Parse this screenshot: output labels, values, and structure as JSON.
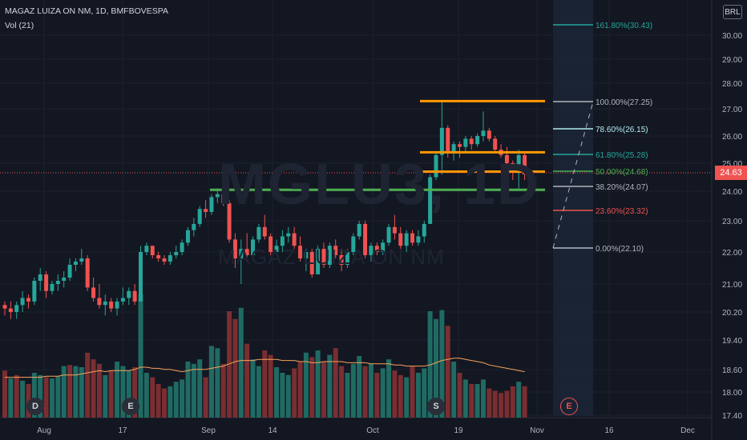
{
  "header": {
    "title": "MAGAZ LUIZA ON NM, 1D, BMFBOVESPA",
    "volume_label": "Vol (21)"
  },
  "watermark": {
    "symbol": "MGLU3, 1D",
    "name": "MAGAZ LUIZA ON NM"
  },
  "currency": "BRL",
  "last_price": "24.63",
  "y_axis_ticks": [
    "30.00",
    "29.00",
    "28.00",
    "27.00",
    "26.00",
    "25.00",
    "24.00",
    "23.00",
    "22.00",
    "21.00",
    "20.20",
    "19.40",
    "18.60",
    "18.00",
    "17.40"
  ],
  "x_axis_ticks": [
    "Aug",
    "17",
    "Sep",
    "14",
    "Oct",
    "19",
    "Nov",
    "16",
    "Dec"
  ],
  "fib_levels": [
    {
      "label": "161.80%(30.43)",
      "color": "#26a69a"
    },
    {
      "label": "100.00%(27.25)",
      "color": "#b2b5be"
    },
    {
      "label": "78.60%(26.15)",
      "color": "#b2ebf2"
    },
    {
      "label": "61.80%(25.28)",
      "color": "#26a69a"
    },
    {
      "label": "50.00%(24.68)",
      "color": "#4caf50"
    },
    {
      "label": "38.20%(24.07)",
      "color": "#b2b5be"
    },
    {
      "label": "23.60%(23.32)",
      "color": "#ef5350"
    },
    {
      "label": "0.00%(22.10)",
      "color": "#b2b5be"
    }
  ],
  "events": [
    {
      "letter": "D",
      "color": "#26a69a"
    },
    {
      "letter": "E",
      "color": "#ef5350"
    },
    {
      "letter": "S",
      "color": "#26a69a"
    },
    {
      "letter": "E",
      "color": "#ef5350"
    }
  ],
  "colors": {
    "up": "#26a69a",
    "down": "#ef5350",
    "background": "#131722",
    "resistance": "#ff9800",
    "support": "#4caf50"
  },
  "chart_data": {
    "type": "candlestick",
    "ohlc": [
      [
        20.4,
        20.5,
        20.1,
        20.3
      ],
      [
        20.3,
        20.5,
        20.0,
        20.2
      ],
      [
        20.2,
        20.5,
        20.0,
        20.4
      ],
      [
        20.4,
        20.8,
        20.2,
        20.6
      ],
      [
        20.6,
        20.7,
        20.3,
        20.5
      ],
      [
        20.5,
        21.2,
        20.4,
        21.1
      ],
      [
        21.1,
        21.5,
        20.8,
        21.3
      ],
      [
        21.3,
        21.4,
        20.6,
        20.8
      ],
      [
        20.8,
        21.1,
        20.7,
        21.0
      ],
      [
        21.0,
        21.3,
        20.8,
        21.1
      ],
      [
        21.1,
        21.4,
        20.9,
        21.2
      ],
      [
        21.2,
        21.8,
        21.1,
        21.6
      ],
      [
        21.6,
        21.8,
        21.4,
        21.7
      ],
      [
        21.7,
        22.1,
        21.6,
        21.8
      ],
      [
        21.8,
        21.9,
        20.8,
        20.9
      ],
      [
        20.9,
        21.2,
        20.5,
        20.6
      ],
      [
        20.6,
        21.0,
        20.3,
        20.4
      ],
      [
        20.4,
        20.7,
        20.1,
        20.5
      ],
      [
        20.5,
        20.6,
        20.2,
        20.3
      ],
      [
        20.3,
        20.6,
        20.1,
        20.5
      ],
      [
        20.5,
        20.9,
        20.4,
        20.6
      ],
      [
        20.6,
        20.9,
        20.4,
        20.8
      ],
      [
        20.8,
        21.0,
        20.4,
        20.5
      ],
      [
        20.5,
        22.2,
        20.5,
        22.0
      ],
      [
        22.0,
        22.3,
        21.9,
        22.2
      ],
      [
        22.2,
        22.2,
        21.8,
        21.9
      ],
      [
        21.9,
        22.0,
        21.7,
        21.8
      ],
      [
        21.8,
        21.9,
        21.6,
        21.7
      ],
      [
        21.7,
        22.0,
        21.6,
        21.9
      ],
      [
        21.9,
        22.2,
        21.8,
        22.0
      ],
      [
        22.0,
        22.4,
        21.9,
        22.3
      ],
      [
        22.3,
        22.8,
        22.2,
        22.7
      ],
      [
        22.7,
        23.1,
        22.5,
        22.9
      ],
      [
        22.9,
        23.5,
        22.8,
        23.4
      ],
      [
        23.4,
        23.7,
        23.1,
        23.3
      ],
      [
        23.3,
        23.9,
        23.2,
        23.8
      ],
      [
        23.8,
        24.1,
        23.6,
        23.9
      ],
      [
        23.9,
        24.0,
        23.5,
        23.6
      ],
      [
        23.6,
        23.7,
        22.3,
        22.4
      ],
      [
        22.4,
        22.6,
        21.5,
        21.8
      ],
      [
        21.8,
        22.4,
        21.0,
        22.1
      ],
      [
        22.1,
        22.6,
        21.7,
        21.9
      ],
      [
        21.9,
        22.5,
        21.8,
        22.4
      ],
      [
        22.4,
        22.9,
        22.3,
        22.8
      ],
      [
        22.8,
        23.2,
        22.4,
        22.5
      ],
      [
        22.5,
        22.6,
        21.9,
        22.0
      ],
      [
        22.0,
        22.4,
        21.9,
        22.2
      ],
      [
        22.2,
        22.7,
        22.0,
        22.5
      ],
      [
        22.5,
        22.8,
        22.3,
        22.6
      ],
      [
        22.6,
        22.8,
        22.1,
        22.2
      ],
      [
        22.2,
        22.5,
        21.7,
        21.8
      ],
      [
        21.8,
        22.1,
        21.4,
        22.0
      ],
      [
        22.0,
        22.1,
        21.2,
        21.3
      ],
      [
        21.3,
        22.2,
        21.3,
        22.1
      ],
      [
        22.1,
        22.3,
        21.5,
        21.6
      ],
      [
        21.6,
        22.3,
        21.5,
        22.2
      ],
      [
        22.2,
        22.4,
        21.8,
        21.9
      ],
      [
        21.9,
        22.1,
        21.4,
        21.6
      ],
      [
        21.6,
        22.1,
        21.5,
        22.0
      ],
      [
        22.0,
        22.6,
        21.9,
        22.5
      ],
      [
        22.5,
        23.0,
        22.4,
        22.9
      ],
      [
        22.9,
        23.0,
        21.8,
        21.9
      ],
      [
        21.9,
        22.3,
        21.7,
        22.2
      ],
      [
        22.2,
        22.3,
        21.9,
        22.0
      ],
      [
        22.0,
        22.4,
        21.9,
        22.3
      ],
      [
        22.3,
        22.9,
        22.2,
        22.8
      ],
      [
        22.8,
        23.2,
        22.4,
        22.6
      ],
      [
        22.6,
        22.8,
        22.1,
        22.2
      ],
      [
        22.2,
        22.7,
        22.0,
        22.6
      ],
      [
        22.6,
        22.7,
        22.2,
        22.3
      ],
      [
        22.3,
        22.7,
        22.2,
        22.5
      ],
      [
        22.5,
        23.0,
        22.3,
        22.9
      ],
      [
        22.9,
        24.6,
        22.9,
        24.5
      ],
      [
        24.5,
        25.4,
        24.4,
        25.3
      ],
      [
        25.3,
        27.3,
        24.6,
        26.3
      ],
      [
        26.3,
        26.4,
        25.2,
        25.4
      ],
      [
        25.4,
        25.8,
        25.1,
        25.7
      ],
      [
        25.7,
        25.8,
        25.2,
        25.6
      ],
      [
        25.6,
        26.0,
        25.4,
        25.9
      ],
      [
        25.9,
        26.0,
        25.5,
        25.7
      ],
      [
        25.7,
        26.1,
        25.6,
        26.0
      ],
      [
        26.0,
        26.9,
        25.8,
        26.2
      ],
      [
        26.2,
        26.3,
        25.8,
        25.9
      ],
      [
        25.9,
        26.0,
        25.4,
        25.5
      ],
      [
        25.5,
        25.7,
        25.2,
        25.3
      ],
      [
        25.3,
        25.6,
        24.9,
        25.0
      ],
      [
        25.0,
        25.1,
        24.4,
        24.7
      ],
      [
        24.7,
        25.5,
        24.1,
        25.3
      ],
      [
        25.3,
        25.4,
        24.4,
        24.6
      ]
    ],
    "volume": [
      {
        "v": 0.42,
        "up": false
      },
      {
        "v": 0.35,
        "up": true
      },
      {
        "v": 0.38,
        "up": false
      },
      {
        "v": 0.33,
        "up": true
      },
      {
        "v": 0.3,
        "up": false
      },
      {
        "v": 0.4,
        "up": true
      },
      {
        "v": 0.38,
        "up": true
      },
      {
        "v": 0.36,
        "up": false
      },
      {
        "v": 0.35,
        "up": true
      },
      {
        "v": 0.37,
        "up": true
      },
      {
        "v": 0.46,
        "up": true
      },
      {
        "v": 0.47,
        "up": false
      },
      {
        "v": 0.46,
        "up": true
      },
      {
        "v": 0.45,
        "up": true
      },
      {
        "v": 0.58,
        "up": false
      },
      {
        "v": 0.52,
        "up": false
      },
      {
        "v": 0.48,
        "up": false
      },
      {
        "v": 0.38,
        "up": true
      },
      {
        "v": 0.42,
        "up": false
      },
      {
        "v": 0.5,
        "up": true
      },
      {
        "v": 0.46,
        "up": true
      },
      {
        "v": 0.42,
        "up": true
      },
      {
        "v": 0.45,
        "up": false
      },
      {
        "v": 1.1,
        "up": true
      },
      {
        "v": 0.4,
        "up": true
      },
      {
        "v": 0.36,
        "up": false
      },
      {
        "v": 0.3,
        "up": false
      },
      {
        "v": 0.26,
        "up": false
      },
      {
        "v": 0.28,
        "up": true
      },
      {
        "v": 0.32,
        "up": true
      },
      {
        "v": 0.34,
        "up": true
      },
      {
        "v": 0.5,
        "up": true
      },
      {
        "v": 0.48,
        "up": true
      },
      {
        "v": 0.52,
        "up": true
      },
      {
        "v": 0.36,
        "up": false
      },
      {
        "v": 0.64,
        "up": true
      },
      {
        "v": 0.62,
        "up": true
      },
      {
        "v": 0.48,
        "up": false
      },
      {
        "v": 0.95,
        "up": false
      },
      {
        "v": 0.88,
        "up": false
      },
      {
        "v": 0.98,
        "up": true
      },
      {
        "v": 0.66,
        "up": false
      },
      {
        "v": 0.52,
        "up": true
      },
      {
        "v": 0.46,
        "up": true
      },
      {
        "v": 0.6,
        "up": false
      },
      {
        "v": 0.56,
        "up": false
      },
      {
        "v": 0.45,
        "up": true
      },
      {
        "v": 0.4,
        "up": true
      },
      {
        "v": 0.38,
        "up": true
      },
      {
        "v": 0.44,
        "up": false
      },
      {
        "v": 0.5,
        "up": false
      },
      {
        "v": 0.58,
        "up": true
      },
      {
        "v": 0.54,
        "up": false
      },
      {
        "v": 0.6,
        "up": true
      },
      {
        "v": 0.5,
        "up": false
      },
      {
        "v": 0.56,
        "up": true
      },
      {
        "v": 0.62,
        "up": false
      },
      {
        "v": 0.46,
        "up": false
      },
      {
        "v": 0.4,
        "up": true
      },
      {
        "v": 0.48,
        "up": true
      },
      {
        "v": 0.55,
        "up": true
      },
      {
        "v": 0.46,
        "up": false
      },
      {
        "v": 0.48,
        "up": true
      },
      {
        "v": 0.4,
        "up": false
      },
      {
        "v": 0.44,
        "up": true
      },
      {
        "v": 0.52,
        "up": true
      },
      {
        "v": 0.42,
        "up": false
      },
      {
        "v": 0.38,
        "up": false
      },
      {
        "v": 0.36,
        "up": true
      },
      {
        "v": 0.46,
        "up": false
      },
      {
        "v": 0.4,
        "up": true
      },
      {
        "v": 0.44,
        "up": true
      },
      {
        "v": 0.95,
        "up": true
      },
      {
        "v": 0.88,
        "up": true
      },
      {
        "v": 0.96,
        "up": true
      },
      {
        "v": 0.82,
        "up": false
      },
      {
        "v": 0.5,
        "up": true
      },
      {
        "v": 0.4,
        "up": false
      },
      {
        "v": 0.34,
        "up": true
      },
      {
        "v": 0.3,
        "up": false
      },
      {
        "v": 0.3,
        "up": true
      },
      {
        "v": 0.34,
        "up": true
      },
      {
        "v": 0.26,
        "up": false
      },
      {
        "v": 0.24,
        "up": false
      },
      {
        "v": 0.22,
        "up": false
      },
      {
        "v": 0.24,
        "up": false
      },
      {
        "v": 0.28,
        "up": false
      },
      {
        "v": 0.32,
        "up": true
      },
      {
        "v": 0.28,
        "up": false
      }
    ],
    "volume_ma": [
      0.36,
      0.36,
      0.36,
      0.36,
      0.36,
      0.36,
      0.36,
      0.37,
      0.37,
      0.37,
      0.38,
      0.38,
      0.38,
      0.39,
      0.4,
      0.41,
      0.42,
      0.41,
      0.42,
      0.42,
      0.42,
      0.42,
      0.43,
      0.45,
      0.45,
      0.44,
      0.44,
      0.43,
      0.43,
      0.42,
      0.41,
      0.42,
      0.43,
      0.43,
      0.43,
      0.44,
      0.45,
      0.46,
      0.48,
      0.5,
      0.51,
      0.51,
      0.51,
      0.52,
      0.52,
      0.52,
      0.52,
      0.51,
      0.51,
      0.51,
      0.5,
      0.5,
      0.49,
      0.49,
      0.5,
      0.5,
      0.5,
      0.5,
      0.49,
      0.49,
      0.49,
      0.49,
      0.48,
      0.48,
      0.48,
      0.48,
      0.47,
      0.47,
      0.46,
      0.46,
      0.46,
      0.46,
      0.47,
      0.49,
      0.51,
      0.52,
      0.53,
      0.53,
      0.52,
      0.51,
      0.5,
      0.49,
      0.47,
      0.46,
      0.45,
      0.44,
      0.43,
      0.42,
      0.41
    ],
    "horizontal_lines": [
      {
        "price": 27.3,
        "kind": "resistance"
      },
      {
        "price": 25.4,
        "kind": "resistance"
      },
      {
        "price": 24.7,
        "kind": "resistance"
      },
      {
        "price": 24.05,
        "kind": "support"
      }
    ],
    "ylim": [
      17.4,
      30.6
    ]
  }
}
